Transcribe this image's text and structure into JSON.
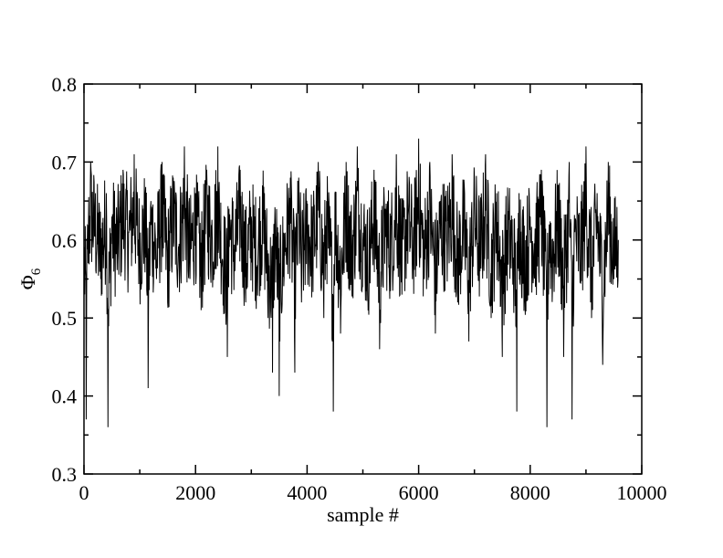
{
  "chart_data": {
    "type": "line",
    "xlabel": "sample #",
    "ylabel": "Φ",
    "ylabel_subscript": "6",
    "xlim": [
      0,
      10000
    ],
    "ylim": [
      0.3,
      0.8
    ],
    "xticks": [
      0,
      2000,
      4000,
      6000,
      8000,
      10000
    ],
    "xtick_labels": [
      "0",
      "2000",
      "4000",
      "6000",
      "8000",
      "10000"
    ],
    "yticks": [
      0.3,
      0.4,
      0.5,
      0.6,
      0.7,
      0.8
    ],
    "ytick_labels": [
      "0.3",
      "0.4",
      "0.5",
      "0.6",
      "0.7",
      "0.8"
    ],
    "grid": false,
    "legend": "none",
    "line_color": "#000000",
    "series": [
      {
        "x": [
          0,
          40,
          80,
          120,
          200,
          300,
          400,
          430,
          500,
          600,
          700,
          800,
          900,
          1000,
          1100,
          1150,
          1200,
          1300,
          1400,
          1500,
          1600,
          1700,
          1800,
          1900,
          2000,
          2100,
          2200,
          2300,
          2400,
          2500,
          2570,
          2600,
          2700,
          2800,
          2900,
          3000,
          3100,
          3200,
          3300,
          3380,
          3430,
          3500,
          3600,
          3700,
          3780,
          3850,
          3900,
          4000,
          4100,
          4200,
          4300,
          4350,
          4400,
          4470,
          4500,
          4600,
          4700,
          4800,
          4900,
          5000,
          5100,
          5200,
          5300,
          5400,
          5500,
          5600,
          5700,
          5800,
          5900,
          6000,
          6100,
          6200,
          6300,
          6400,
          6500,
          6600,
          6700,
          6800,
          6900,
          7000,
          7100,
          7200,
          7300,
          7400,
          7500,
          7600,
          7700,
          7760,
          7800,
          7900,
          8000,
          8100,
          8200,
          8300,
          8340,
          8400,
          8500,
          8600,
          8700,
          8750,
          8800,
          8900,
          9000,
          9100,
          9200,
          9300,
          9400,
          9500,
          9580
        ],
        "y": [
          0.53,
          0.37,
          0.62,
          0.7,
          0.64,
          0.55,
          0.66,
          0.36,
          0.63,
          0.58,
          0.69,
          0.61,
          0.71,
          0.57,
          0.66,
          0.41,
          0.65,
          0.55,
          0.7,
          0.52,
          0.68,
          0.58,
          0.72,
          0.55,
          0.66,
          0.51,
          0.69,
          0.6,
          0.72,
          0.53,
          0.45,
          0.64,
          0.56,
          0.69,
          0.52,
          0.63,
          0.55,
          0.67,
          0.5,
          0.43,
          0.62,
          0.4,
          0.58,
          0.68,
          0.43,
          0.68,
          0.52,
          0.63,
          0.57,
          0.7,
          0.5,
          0.65,
          0.58,
          0.38,
          0.66,
          0.48,
          0.7,
          0.55,
          0.72,
          0.6,
          0.52,
          0.69,
          0.46,
          0.64,
          0.57,
          0.71,
          0.53,
          0.67,
          0.58,
          0.73,
          0.55,
          0.7,
          0.48,
          0.65,
          0.6,
          0.71,
          0.52,
          0.64,
          0.47,
          0.68,
          0.56,
          0.71,
          0.5,
          0.66,
          0.45,
          0.62,
          0.55,
          0.38,
          0.66,
          0.52,
          0.63,
          0.58,
          0.69,
          0.36,
          0.62,
          0.54,
          0.67,
          0.45,
          0.7,
          0.37,
          0.61,
          0.55,
          0.72,
          0.5,
          0.66,
          0.44,
          0.7,
          0.55,
          0.6
        ]
      }
    ]
  }
}
